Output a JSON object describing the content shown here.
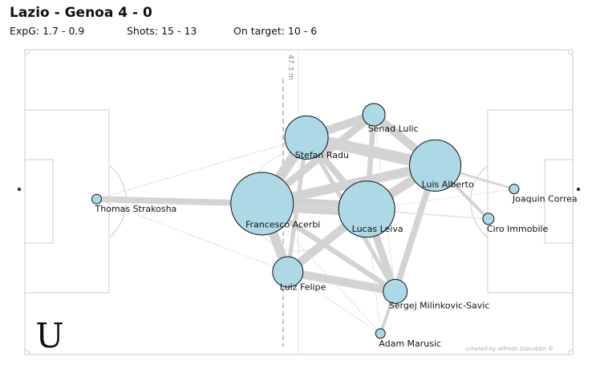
{
  "title": "Lazio - Genoa   4 - 0",
  "stats": {
    "expg": "ExpG:  1.7  - 0.9",
    "shots": "Shots:  15 - 13",
    "on_target": "On target:  10 - 6"
  },
  "median_label": "47.3 m",
  "credit": "created by Alfredo Giacobbo ©",
  "logo_text": "U",
  "colors": {
    "node": "#add8e6",
    "edge": "#d3d3d3",
    "pitch_line": "#cccccc"
  },
  "chart_data": {
    "type": "network",
    "title": "Lazio - Genoa   4 - 0",
    "nodes": [
      {
        "name": "Thomas Strakosha",
        "x": 13.1,
        "y": 49.0,
        "size": 6
      },
      {
        "name": "Francesco Acerbi",
        "x": 43.3,
        "y": 50.5,
        "size": 39
      },
      {
        "name": "Stefan Radu",
        "x": 51.4,
        "y": 28.8,
        "size": 27
      },
      {
        "name": "Senad Lulic",
        "x": 63.7,
        "y": 21.3,
        "size": 14
      },
      {
        "name": "Luis Alberto",
        "x": 74.9,
        "y": 38.0,
        "size": 32
      },
      {
        "name": "Joaquin Correa",
        "x": 89.3,
        "y": 45.7,
        "size": 6
      },
      {
        "name": "Lucas Leiva",
        "x": 62.4,
        "y": 52.3,
        "size": 35
      },
      {
        "name": "Ciro Immobile",
        "x": 84.6,
        "y": 55.5,
        "size": 7
      },
      {
        "name": "Luiz Felipe",
        "x": 48.0,
        "y": 72.9,
        "size": 19
      },
      {
        "name": "Sergej Milinkovic-Savic",
        "x": 67.6,
        "y": 79.3,
        "size": 15
      },
      {
        "name": "Adam Marusic",
        "x": 64.9,
        "y": 93.1,
        "size": 6
      }
    ],
    "edges": [
      {
        "source": "Francesco Acerbi",
        "target": "Thomas Strakosha",
        "weight": 6
      },
      {
        "source": "Francesco Acerbi",
        "target": "Stefan Radu",
        "weight": 10
      },
      {
        "source": "Francesco Acerbi",
        "target": "Lucas Leiva",
        "weight": 14
      },
      {
        "source": "Francesco Acerbi",
        "target": "Luiz Felipe",
        "weight": 9
      },
      {
        "source": "Francesco Acerbi",
        "target": "Luis Alberto",
        "weight": 9
      },
      {
        "source": "Francesco Acerbi",
        "target": "Senad Lulic",
        "weight": 7
      },
      {
        "source": "Francesco Acerbi",
        "target": "Sergej Milinkovic-Savic",
        "weight": 5
      },
      {
        "source": "Stefan Radu",
        "target": "Senad Lulic",
        "weight": 8
      },
      {
        "source": "Stefan Radu",
        "target": "Luis Alberto",
        "weight": 11
      },
      {
        "source": "Stefan Radu",
        "target": "Lucas Leiva",
        "weight": 6
      },
      {
        "source": "Stefan Radu",
        "target": "Sergej Milinkovic-Savic",
        "weight": 4
      },
      {
        "source": "Senad Lulic",
        "target": "Luis Alberto",
        "weight": 8
      },
      {
        "source": "Senad Lulic",
        "target": "Lucas Leiva",
        "weight": 5
      },
      {
        "source": "Luis Alberto",
        "target": "Lucas Leiva",
        "weight": 9
      },
      {
        "source": "Luis Alberto",
        "target": "Sergej Milinkovic-Savic",
        "weight": 6
      },
      {
        "source": "Luis Alberto",
        "target": "Ciro Immobile",
        "weight": 3
      },
      {
        "source": "Luis Alberto",
        "target": "Joaquin Correa",
        "weight": 2
      },
      {
        "source": "Lucas Leiva",
        "target": "Luiz Felipe",
        "weight": 8
      },
      {
        "source": "Lucas Leiva",
        "target": "Sergej Milinkovic-Savic",
        "weight": 7
      },
      {
        "source": "Luiz Felipe",
        "target": "Sergej Milinkovic-Savic",
        "weight": 8
      },
      {
        "source": "Luiz Felipe",
        "target": "Stefan Radu",
        "weight": 4
      },
      {
        "source": "Sergej Milinkovic-Savic",
        "target": "Adam Marusic",
        "weight": 3
      },
      {
        "source": "Lucas Leiva",
        "target": "Senad Lulic",
        "weight": 4
      },
      {
        "source": "Thomas Strakosha",
        "target": "Stefan Radu",
        "weight": 1
      },
      {
        "source": "Thomas Strakosha",
        "target": "Luiz Felipe",
        "weight": 1
      },
      {
        "source": "Thomas Strakosha",
        "target": "Lucas Leiva",
        "weight": 1
      },
      {
        "source": "Adam Marusic",
        "target": "Luiz Felipe",
        "weight": 1
      },
      {
        "source": "Adam Marusic",
        "target": "Lucas Leiva",
        "weight": 1
      },
      {
        "source": "Joaquin Correa",
        "target": "Lucas Leiva",
        "weight": 1
      },
      {
        "source": "Joaquin Correa",
        "target": "Stefan Radu",
        "weight": 1
      },
      {
        "source": "Ciro Immobile",
        "target": "Lucas Leiva",
        "weight": 1
      },
      {
        "source": "Ciro Immobile",
        "target": "Francesco Acerbi",
        "weight": 1
      },
      {
        "source": "Senad Lulic",
        "target": "Sergej Milinkovic-Savic",
        "weight": 1
      },
      {
        "source": "Adam Marusic",
        "target": "Francesco Acerbi",
        "weight": 1
      }
    ]
  }
}
